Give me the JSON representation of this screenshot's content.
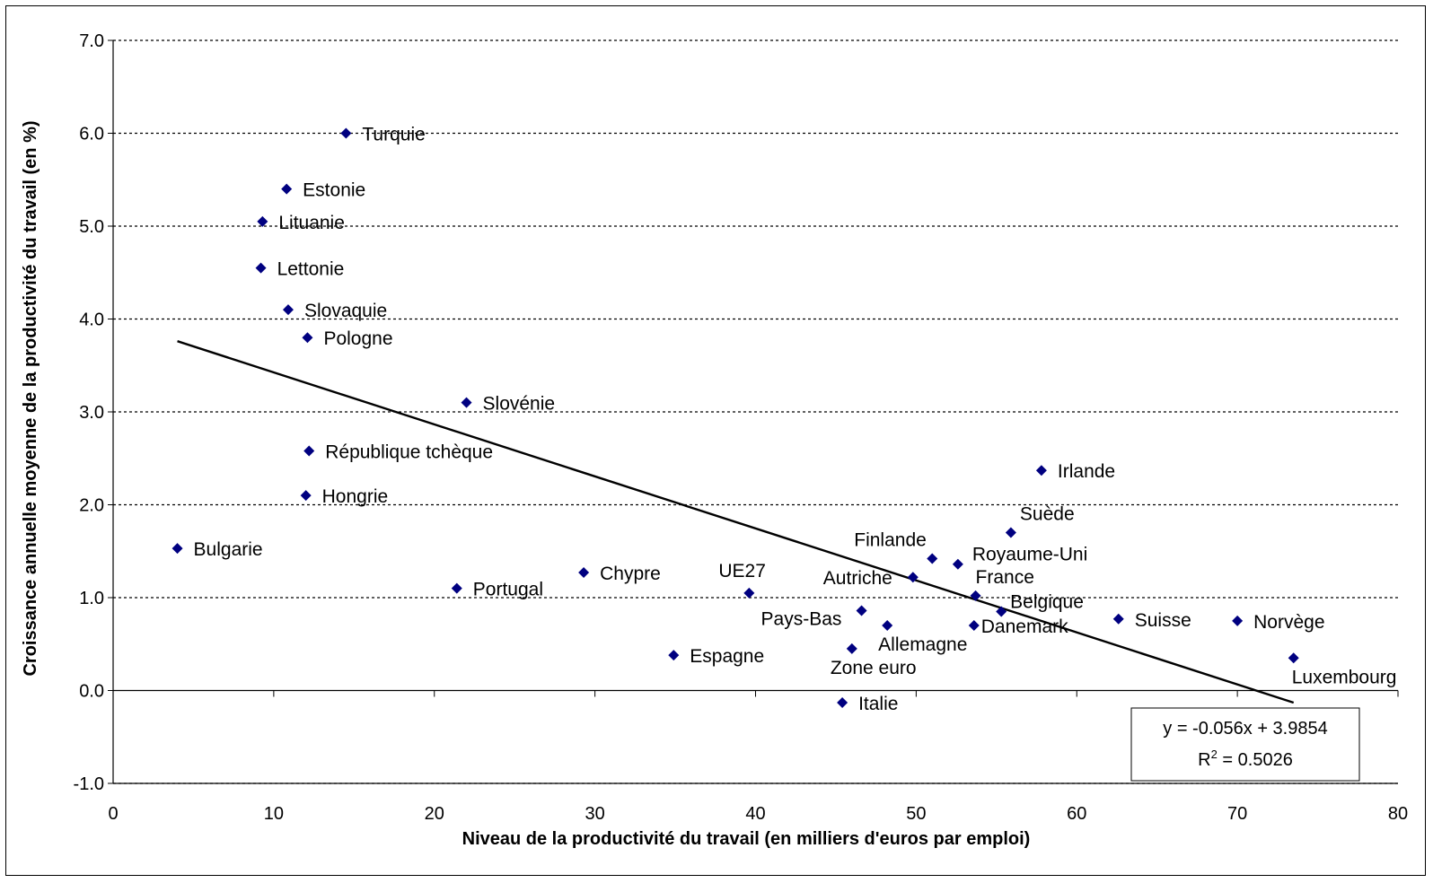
{
  "chart_data": {
    "type": "scatter",
    "xlabel": "Niveau de la productivité du travail (en milliers d'euros par emploi)",
    "ylabel": "Croissance annuelle moyenne de la productivité du travail (en %)",
    "xlim": [
      0,
      80
    ],
    "ylim": [
      -1.0,
      7.0
    ],
    "x_ticks": [
      "0",
      "10",
      "20",
      "30",
      "40",
      "50",
      "60",
      "70",
      "80"
    ],
    "y_ticks": [
      "-1.0",
      "0.0",
      "1.0",
      "2.0",
      "3.0",
      "4.0",
      "5.0",
      "6.0",
      "7.0"
    ],
    "grid": "horizontal-dotted",
    "marker_color": "#000080",
    "points": [
      {
        "label": "Turquie",
        "x": 14.5,
        "y": 6.0
      },
      {
        "label": "Estonie",
        "x": 10.8,
        "y": 5.4
      },
      {
        "label": "Lituanie",
        "x": 9.3,
        "y": 5.05
      },
      {
        "label": "Lettonie",
        "x": 9.2,
        "y": 4.55
      },
      {
        "label": "Slovaquie",
        "x": 10.9,
        "y": 4.1
      },
      {
        "label": "Pologne",
        "x": 12.1,
        "y": 3.8
      },
      {
        "label": "Slovénie",
        "x": 22.0,
        "y": 3.1
      },
      {
        "label": "République tchèque",
        "x": 12.2,
        "y": 2.58
      },
      {
        "label": "Hongrie",
        "x": 12.0,
        "y": 2.1
      },
      {
        "label": "Bulgarie",
        "x": 4.0,
        "y": 1.53
      },
      {
        "label": "Portugal",
        "x": 21.4,
        "y": 1.1
      },
      {
        "label": "Chypre",
        "x": 29.3,
        "y": 1.27
      },
      {
        "label": "UE27",
        "x": 39.6,
        "y": 1.05
      },
      {
        "label": "Espagne",
        "x": 34.9,
        "y": 0.38
      },
      {
        "label": "Pays-Bas",
        "x": 46.6,
        "y": 0.86
      },
      {
        "label": "Zone euro",
        "x": 46.0,
        "y": 0.45
      },
      {
        "label": "Allemagne",
        "x": 48.2,
        "y": 0.7
      },
      {
        "label": "Italie",
        "x": 45.4,
        "y": -0.13
      },
      {
        "label": "Autriche",
        "x": 49.8,
        "y": 1.22
      },
      {
        "label": "Finlande",
        "x": 51.0,
        "y": 1.42
      },
      {
        "label": "Royaume-Uni",
        "x": 52.6,
        "y": 1.36
      },
      {
        "label": "France",
        "x": 53.7,
        "y": 1.02
      },
      {
        "label": "Belgique",
        "x": 55.3,
        "y": 0.85
      },
      {
        "label": "Danemark",
        "x": 53.6,
        "y": 0.7
      },
      {
        "label": "Suède",
        "x": 55.9,
        "y": 1.7
      },
      {
        "label": "Irlande",
        "x": 57.8,
        "y": 2.37
      },
      {
        "label": "Suisse",
        "x": 62.6,
        "y": 0.77
      },
      {
        "label": "Norvège",
        "x": 70.0,
        "y": 0.75
      },
      {
        "label": "Luxembourg",
        "x": 73.5,
        "y": 0.35
      }
    ],
    "trendline": {
      "slope": -0.056,
      "intercept": 3.9854,
      "x_range": [
        4.0,
        73.5
      ]
    },
    "equation": "y = -0.056x + 3.9854",
    "r2_prefix": "R",
    "r2_exp": "2",
    "r2_value": " = 0.5026"
  }
}
